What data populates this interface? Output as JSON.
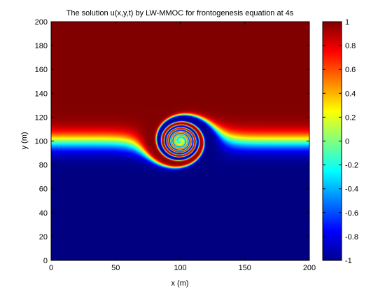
{
  "chart_data": {
    "type": "heatmap",
    "title": "The solution u(x,y,t) by LW-MMOC for frontogenesis equation at 4s",
    "xlabel": "x (m)",
    "ylabel": "y (m)",
    "xlim": [
      0,
      200
    ],
    "ylim": [
      0,
      200
    ],
    "x_ticks": [
      0,
      50,
      100,
      150,
      200
    ],
    "y_ticks": [
      0,
      20,
      40,
      60,
      80,
      100,
      120,
      140,
      160,
      180,
      200
    ],
    "colorbar": {
      "colormap": "jet",
      "range": [
        -1,
        1
      ],
      "ticks": [
        1,
        0.8,
        0.6,
        0.4,
        0.2,
        0,
        -0.2,
        -0.4,
        -0.6,
        -0.8,
        -1
      ],
      "tick_labels": [
        "1",
        "0.8",
        "0.6",
        "0.4",
        "0.2",
        "0",
        "-0.2",
        "-0.4",
        "-0.6",
        "-0.8",
        "-1"
      ]
    },
    "field": {
      "description_of_values": "u ranges from 1 in upper region to -1 in lower region with a spiral vortex centered near (100,100)",
      "vortex_center": [
        100,
        100
      ],
      "front_y": 100,
      "values_top": 1,
      "values_bottom": -1
    },
    "grid": false,
    "legend": "none"
  }
}
